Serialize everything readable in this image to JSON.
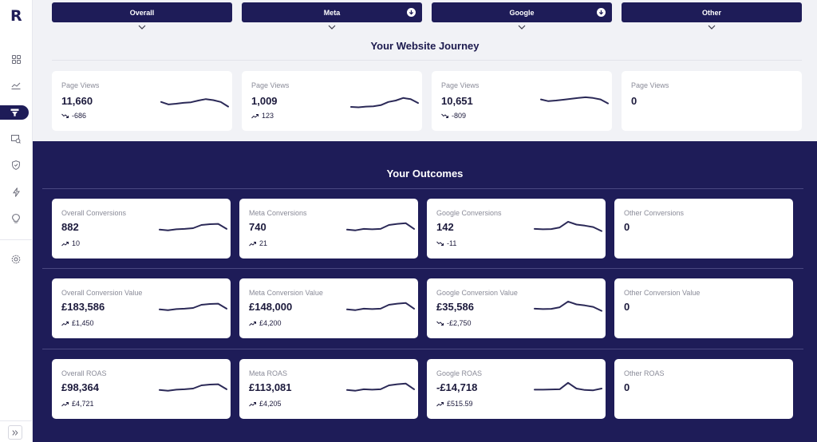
{
  "app": {
    "logo": "R"
  },
  "sidebar": {
    "items": [
      {
        "icon": "grid-icon"
      },
      {
        "icon": "line-chart-icon"
      },
      {
        "icon": "funnel-icon",
        "active": true
      },
      {
        "icon": "report-icon"
      },
      {
        "icon": "shield-icon"
      },
      {
        "icon": "bolt-icon"
      },
      {
        "icon": "lightbulb-icon"
      },
      {
        "icon": "settings-icon"
      }
    ],
    "collapse_icon": "double-chevron-right-icon"
  },
  "tabs": [
    {
      "label": "Overall",
      "download": false
    },
    {
      "label": "Meta",
      "download": true
    },
    {
      "label": "Google",
      "download": true
    },
    {
      "label": "Other",
      "download": false
    }
  ],
  "journey": {
    "title": "Your Website Journey",
    "cards": [
      {
        "label": "Page Views",
        "value": "11,660",
        "trend": "down",
        "delta": "-686",
        "spark": [
          0.62,
          0.45,
          0.5,
          0.56,
          0.6,
          0.72,
          0.82,
          0.75,
          0.62,
          0.3
        ]
      },
      {
        "label": "Page Views",
        "value": "1,009",
        "trend": "up",
        "delta": "123",
        "spark": [
          0.28,
          0.25,
          0.3,
          0.32,
          0.4,
          0.62,
          0.72,
          0.9,
          0.82,
          0.55
        ]
      },
      {
        "label": "Page Views",
        "value": "10,651",
        "trend": "down",
        "delta": "-809",
        "spark": [
          0.8,
          0.68,
          0.72,
          0.78,
          0.84,
          0.9,
          0.95,
          0.9,
          0.8,
          0.52
        ]
      },
      {
        "label": "Page Views",
        "value": "0",
        "trend": "none",
        "delta": "",
        "spark": []
      }
    ]
  },
  "outcomes": {
    "title": "Your Outcomes",
    "rows": [
      [
        {
          "label": "Overall Conversions",
          "value": "882",
          "trend": "up",
          "delta": "10",
          "spark": [
            0.4,
            0.35,
            0.42,
            0.45,
            0.5,
            0.72,
            0.78,
            0.8,
            0.45
          ]
        },
        {
          "label": "Meta Conversions",
          "value": "740",
          "trend": "up",
          "delta": "21",
          "spark": [
            0.4,
            0.35,
            0.45,
            0.42,
            0.45,
            0.72,
            0.8,
            0.85,
            0.45
          ]
        },
        {
          "label": "Google Conversions",
          "value": "142",
          "trend": "down",
          "delta": "-11",
          "spark": [
            0.45,
            0.42,
            0.44,
            0.55,
            0.95,
            0.75,
            0.68,
            0.58,
            0.3
          ]
        },
        {
          "label": "Other Conversions",
          "value": "0",
          "trend": "none",
          "delta": "",
          "spark": []
        }
      ],
      [
        {
          "label": "Overall Conversion Value",
          "value": "£183,586",
          "trend": "up",
          "delta": "£1,450",
          "spark": [
            0.4,
            0.35,
            0.42,
            0.45,
            0.5,
            0.72,
            0.78,
            0.8,
            0.45
          ]
        },
        {
          "label": "Meta Conversion Value",
          "value": "£148,000",
          "trend": "up",
          "delta": "£4,200",
          "spark": [
            0.4,
            0.35,
            0.45,
            0.42,
            0.45,
            0.72,
            0.8,
            0.85,
            0.45
          ]
        },
        {
          "label": "Google Conversion Value",
          "value": "£35,586",
          "trend": "down",
          "delta": "-£2,750",
          "spark": [
            0.45,
            0.42,
            0.44,
            0.55,
            0.95,
            0.75,
            0.68,
            0.58,
            0.3
          ]
        },
        {
          "label": "Other Conversion Value",
          "value": "0",
          "trend": "none",
          "delta": "",
          "spark": []
        }
      ],
      [
        {
          "label": "Overall ROAS",
          "value": "£98,364",
          "trend": "up",
          "delta": "£4,721",
          "spark": [
            0.4,
            0.35,
            0.42,
            0.45,
            0.5,
            0.72,
            0.78,
            0.8,
            0.45
          ]
        },
        {
          "label": "Meta ROAS",
          "value": "£113,081",
          "trend": "up",
          "delta": "£4,205",
          "spark": [
            0.4,
            0.35,
            0.45,
            0.42,
            0.45,
            0.72,
            0.8,
            0.85,
            0.45
          ]
        },
        {
          "label": "Google ROAS",
          "value": "-£14,718",
          "trend": "up",
          "delta": "£515.59",
          "spark": [
            0.42,
            0.42,
            0.44,
            0.45,
            0.9,
            0.5,
            0.4,
            0.38,
            0.5
          ]
        },
        {
          "label": "Other ROAS",
          "value": "0",
          "trend": "none",
          "delta": "",
          "spark": []
        }
      ]
    ]
  },
  "colors": {
    "navy": "#1e1c58",
    "spark": "#2b2957",
    "card_bg": "#ffffff",
    "page_bg": "#f1f2f6"
  }
}
